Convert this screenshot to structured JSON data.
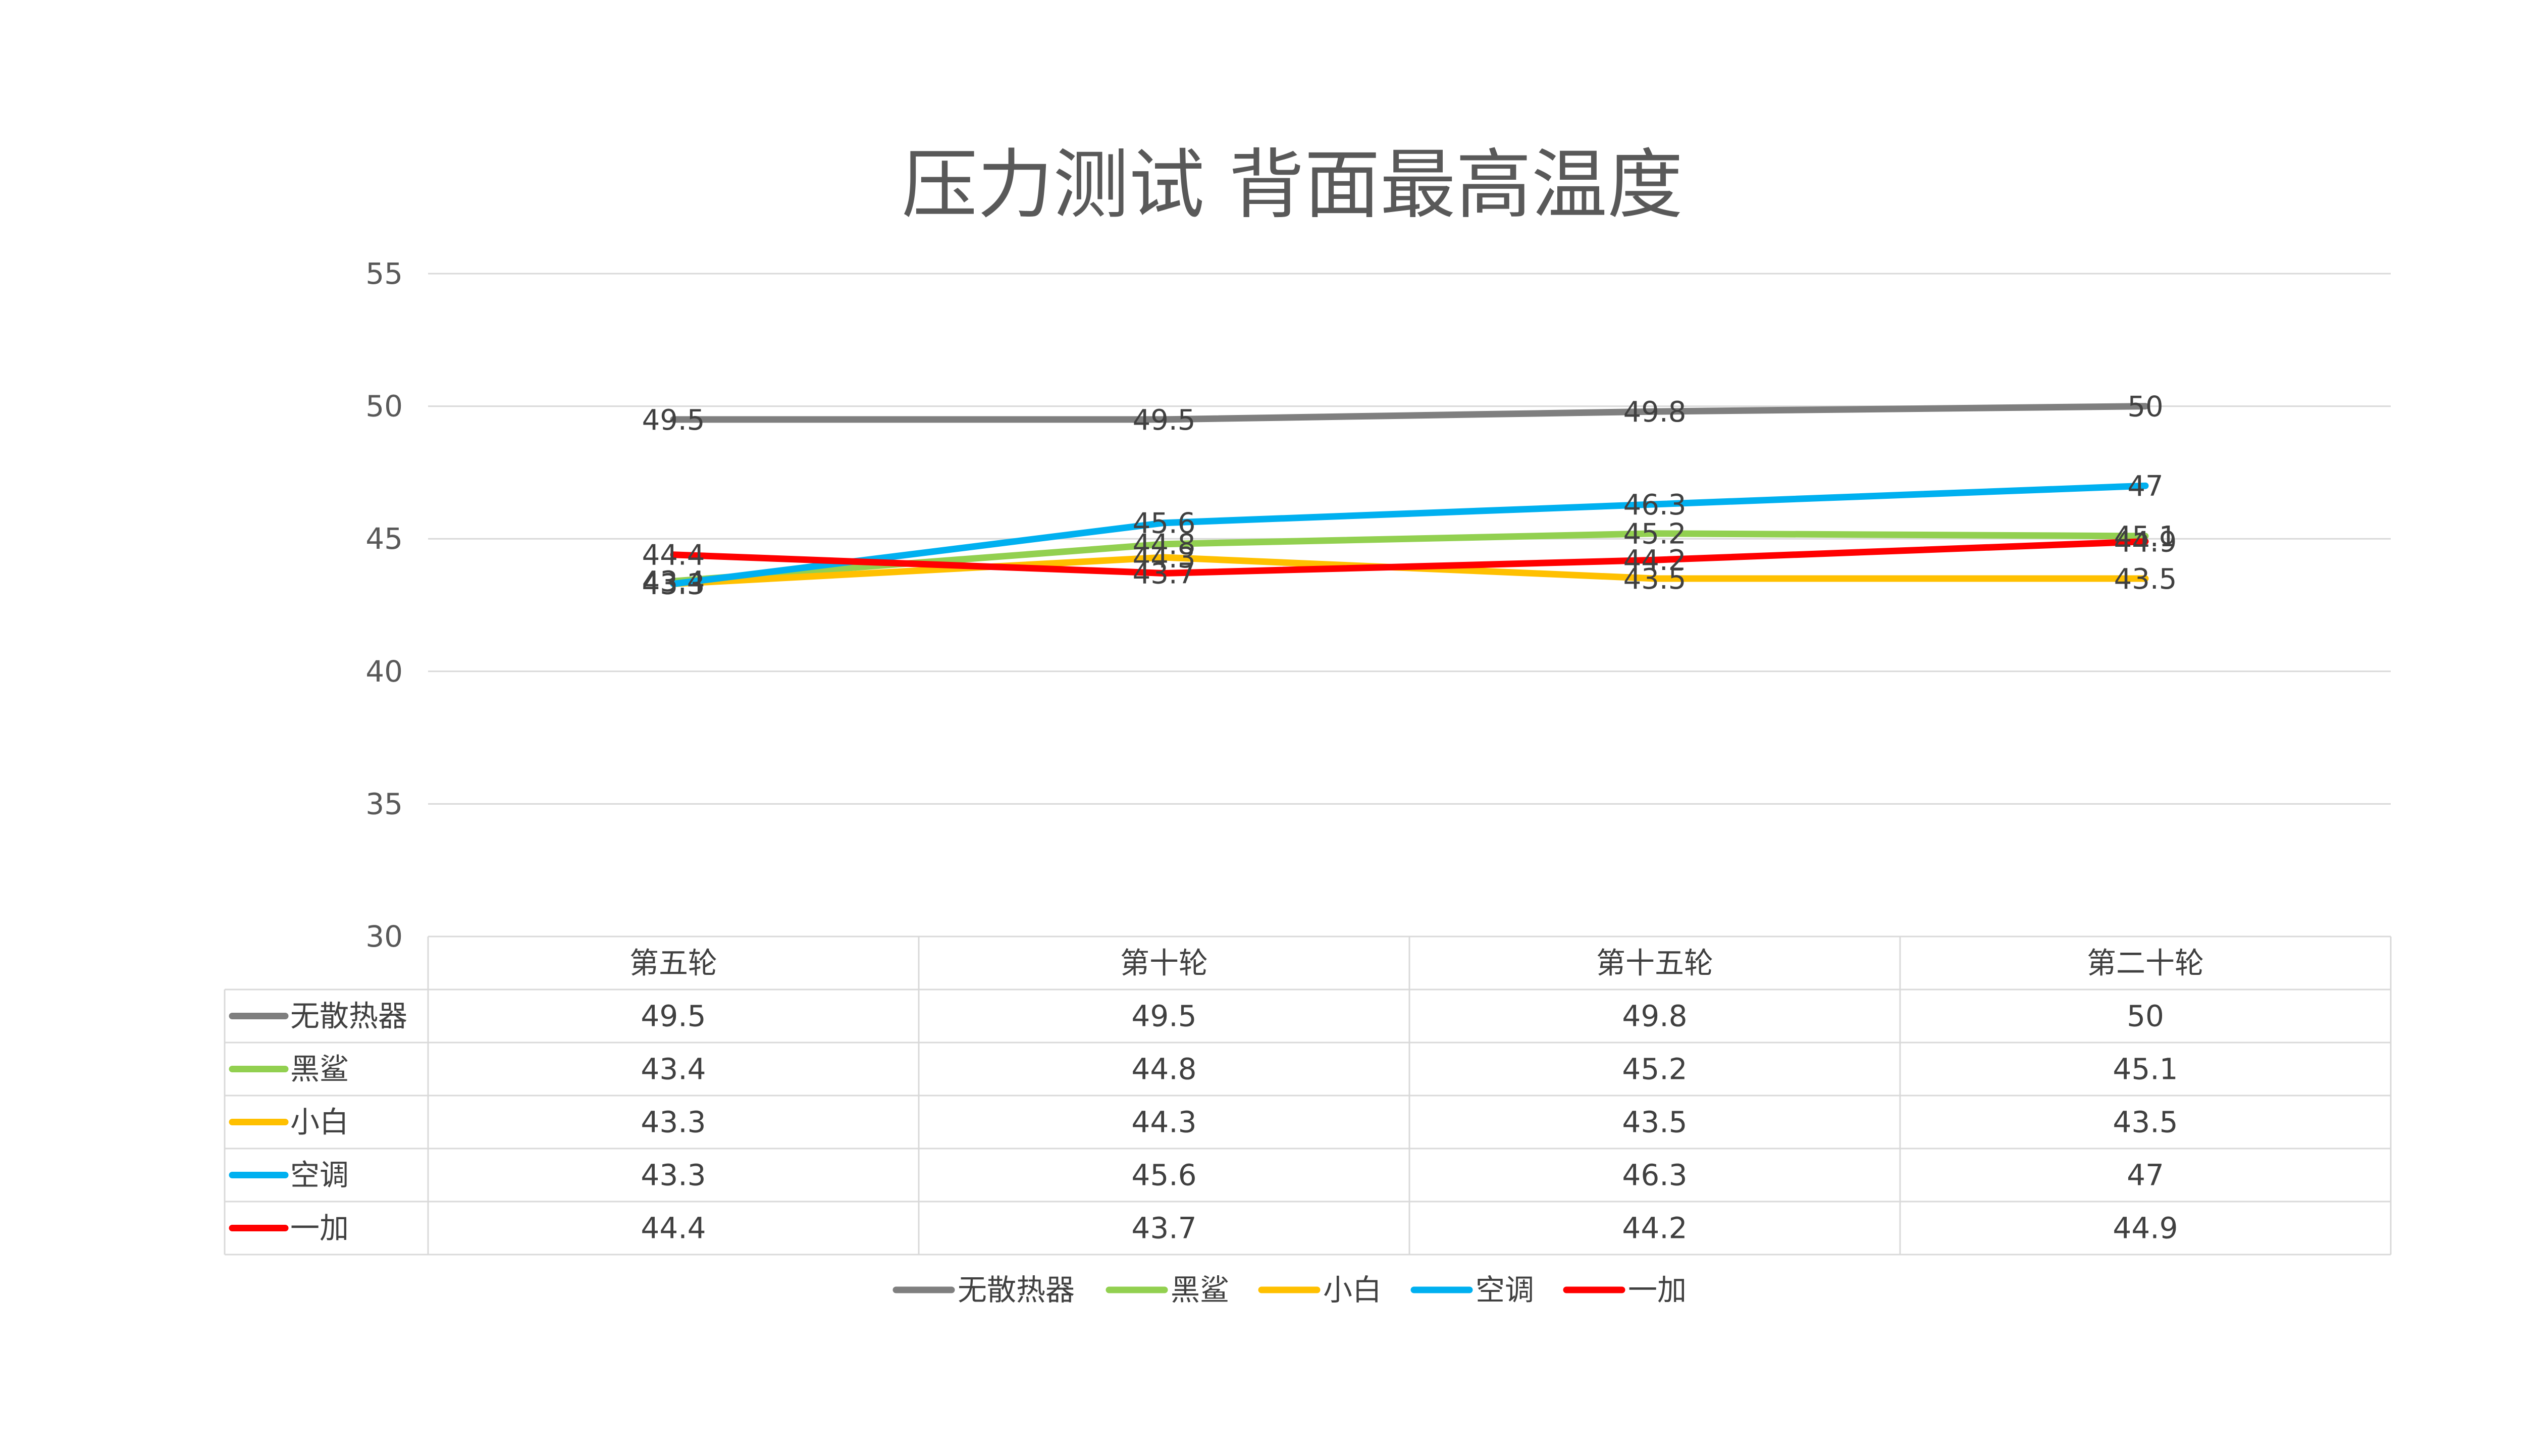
{
  "chart_data": {
    "type": "line",
    "title": "压力测试 背面最高温度",
    "categories": [
      "第五轮",
      "第十轮",
      "第十五轮",
      "第二十轮"
    ],
    "ylim": [
      30,
      55
    ],
    "yticks": [
      30,
      35,
      40,
      45,
      50,
      55
    ],
    "grid": true,
    "legend_position": "bottom",
    "data_table": true,
    "series": [
      {
        "name": "无散热器",
        "color": "#7f7f7f",
        "values": [
          49.5,
          49.5,
          49.8,
          50
        ]
      },
      {
        "name": "黑鲨",
        "color": "#92d050",
        "values": [
          43.4,
          44.8,
          45.2,
          45.1
        ]
      },
      {
        "name": "小白",
        "color": "#ffc000",
        "values": [
          43.3,
          44.3,
          43.5,
          43.5
        ]
      },
      {
        "name": "空调",
        "color": "#00b0f0",
        "values": [
          43.3,
          45.6,
          46.3,
          47
        ]
      },
      {
        "name": "一加",
        "color": "#ff0000",
        "values": [
          44.4,
          43.7,
          44.2,
          44.9
        ]
      }
    ]
  }
}
